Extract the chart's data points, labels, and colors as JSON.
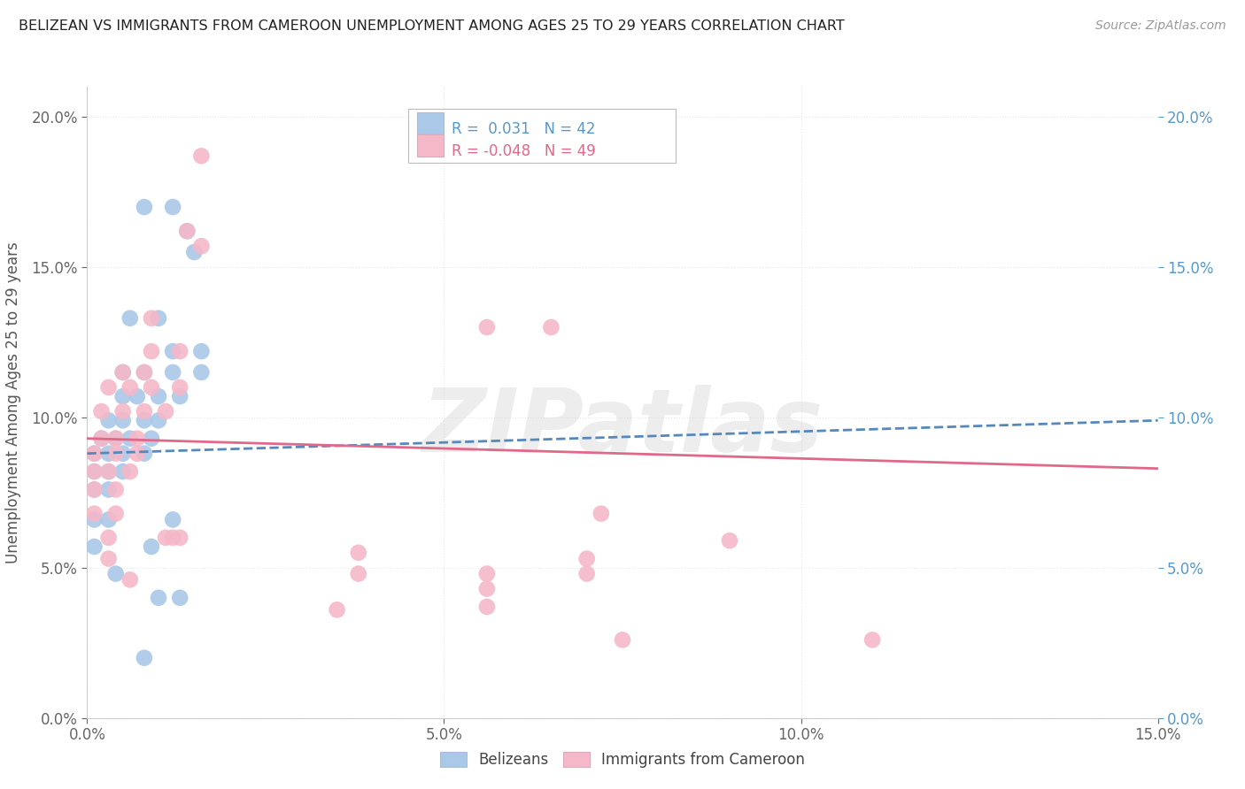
{
  "title": "BELIZEAN VS IMMIGRANTS FROM CAMEROON UNEMPLOYMENT AMONG AGES 25 TO 29 YEARS CORRELATION CHART",
  "source": "Source: ZipAtlas.com",
  "xlim": [
    0.0,
    0.15
  ],
  "ylim": [
    0.0,
    0.21
  ],
  "ylabel": "Unemployment Among Ages 25 to 29 years",
  "legend_entries": [
    {
      "label": "Belizeans",
      "color": "#aac8e8",
      "R": "0.031",
      "N": "42",
      "line_color": "#5588bb",
      "line_style": "--"
    },
    {
      "label": "Immigrants from Cameroon",
      "color": "#f5b8c8",
      "R": "-0.048",
      "N": "49",
      "line_color": "#e06888",
      "line_style": "-"
    }
  ],
  "blue_points": [
    [
      0.008,
      0.17
    ],
    [
      0.012,
      0.17
    ],
    [
      0.014,
      0.162
    ],
    [
      0.015,
      0.155
    ],
    [
      0.006,
      0.133
    ],
    [
      0.01,
      0.133
    ],
    [
      0.012,
      0.122
    ],
    [
      0.016,
      0.122
    ],
    [
      0.005,
      0.115
    ],
    [
      0.008,
      0.115
    ],
    [
      0.012,
      0.115
    ],
    [
      0.016,
      0.115
    ],
    [
      0.005,
      0.107
    ],
    [
      0.007,
      0.107
    ],
    [
      0.01,
      0.107
    ],
    [
      0.013,
      0.107
    ],
    [
      0.003,
      0.099
    ],
    [
      0.005,
      0.099
    ],
    [
      0.008,
      0.099
    ],
    [
      0.01,
      0.099
    ],
    [
      0.002,
      0.093
    ],
    [
      0.004,
      0.093
    ],
    [
      0.006,
      0.093
    ],
    [
      0.009,
      0.093
    ],
    [
      0.001,
      0.088
    ],
    [
      0.003,
      0.088
    ],
    [
      0.005,
      0.088
    ],
    [
      0.008,
      0.088
    ],
    [
      0.001,
      0.082
    ],
    [
      0.003,
      0.082
    ],
    [
      0.005,
      0.082
    ],
    [
      0.001,
      0.076
    ],
    [
      0.003,
      0.076
    ],
    [
      0.001,
      0.066
    ],
    [
      0.003,
      0.066
    ],
    [
      0.012,
      0.066
    ],
    [
      0.001,
      0.057
    ],
    [
      0.009,
      0.057
    ],
    [
      0.004,
      0.048
    ],
    [
      0.01,
      0.04
    ],
    [
      0.013,
      0.04
    ],
    [
      0.008,
      0.02
    ]
  ],
  "pink_points": [
    [
      0.016,
      0.187
    ],
    [
      0.014,
      0.162
    ],
    [
      0.016,
      0.157
    ],
    [
      0.009,
      0.133
    ],
    [
      0.056,
      0.13
    ],
    [
      0.065,
      0.13
    ],
    [
      0.009,
      0.122
    ],
    [
      0.013,
      0.122
    ],
    [
      0.005,
      0.115
    ],
    [
      0.008,
      0.115
    ],
    [
      0.003,
      0.11
    ],
    [
      0.006,
      0.11
    ],
    [
      0.009,
      0.11
    ],
    [
      0.013,
      0.11
    ],
    [
      0.002,
      0.102
    ],
    [
      0.005,
      0.102
    ],
    [
      0.008,
      0.102
    ],
    [
      0.011,
      0.102
    ],
    [
      0.002,
      0.093
    ],
    [
      0.004,
      0.093
    ],
    [
      0.007,
      0.093
    ],
    [
      0.001,
      0.088
    ],
    [
      0.004,
      0.088
    ],
    [
      0.007,
      0.088
    ],
    [
      0.001,
      0.082
    ],
    [
      0.003,
      0.082
    ],
    [
      0.006,
      0.082
    ],
    [
      0.001,
      0.076
    ],
    [
      0.004,
      0.076
    ],
    [
      0.001,
      0.068
    ],
    [
      0.004,
      0.068
    ],
    [
      0.003,
      0.06
    ],
    [
      0.011,
      0.06
    ],
    [
      0.012,
      0.06
    ],
    [
      0.013,
      0.06
    ],
    [
      0.003,
      0.053
    ],
    [
      0.07,
      0.053
    ],
    [
      0.006,
      0.046
    ],
    [
      0.056,
      0.043
    ],
    [
      0.035,
      0.036
    ],
    [
      0.075,
      0.026
    ],
    [
      0.11,
      0.026
    ],
    [
      0.072,
      0.068
    ],
    [
      0.09,
      0.059
    ],
    [
      0.038,
      0.055
    ],
    [
      0.038,
      0.048
    ],
    [
      0.056,
      0.048
    ],
    [
      0.07,
      0.048
    ],
    [
      0.056,
      0.037
    ]
  ],
  "blue_line": [
    0.0,
    0.15,
    0.088,
    0.099
  ],
  "pink_line": [
    0.0,
    0.15,
    0.093,
    0.083
  ],
  "watermark": "ZIPatlas",
  "watermark_color": "#cccccc",
  "grid_color": "#e8e8e8",
  "background_color": "#ffffff",
  "xticks": [
    0.0,
    0.05,
    0.1,
    0.15
  ],
  "yticks": [
    0.0,
    0.05,
    0.1,
    0.15,
    0.2
  ]
}
